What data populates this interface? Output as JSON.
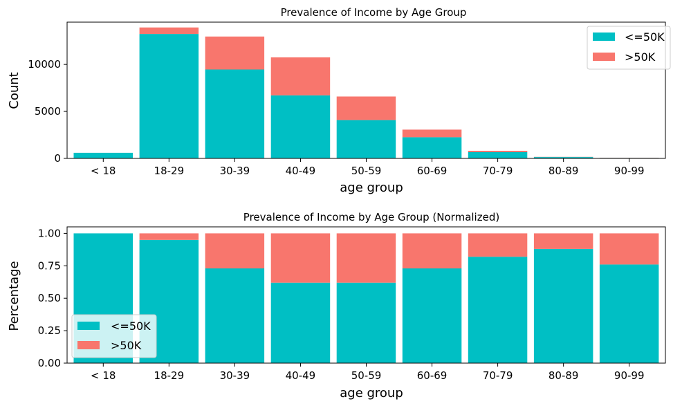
{
  "colors": {
    "le50k": "#00BFC4",
    "gt50k": "#F8766D"
  },
  "chart_data": [
    {
      "type": "bar",
      "stacked": true,
      "title": "Prevalence of Income by Age Group",
      "xlabel": "age group",
      "ylabel": "Count",
      "categories": [
        "< 18",
        "18-29",
        "30-39",
        "40-49",
        "50-59",
        "60-69",
        "70-79",
        "80-89",
        "90-99"
      ],
      "series": [
        {
          "name": "<=50K",
          "values": [
            595,
            13240,
            9460,
            6700,
            4080,
            2250,
            660,
            140,
            55
          ]
        },
        {
          "name": ">50K",
          "values": [
            0,
            690,
            3510,
            4050,
            2510,
            810,
            150,
            20,
            15
          ]
        }
      ],
      "ylim": [
        0,
        14500
      ],
      "yticks": [
        0,
        5000,
        10000
      ],
      "legend": "top-right"
    },
    {
      "type": "bar",
      "stacked": true,
      "title": "Prevalence of Income by Age Group (Normalized)",
      "xlabel": "age group",
      "ylabel": "Percentage",
      "categories": [
        "< 18",
        "18-29",
        "30-39",
        "40-49",
        "50-59",
        "60-69",
        "70-79",
        "80-89",
        "90-99"
      ],
      "series": [
        {
          "name": "<=50K",
          "values": [
            1.0,
            0.95,
            0.73,
            0.62,
            0.62,
            0.73,
            0.82,
            0.88,
            0.76
          ]
        },
        {
          "name": ">50K",
          "values": [
            0.0,
            0.05,
            0.27,
            0.38,
            0.38,
            0.27,
            0.18,
            0.12,
            0.24
          ]
        }
      ],
      "ylim": [
        0,
        1.05
      ],
      "yticks": [
        0.0,
        0.25,
        0.5,
        0.75,
        1.0
      ],
      "ytick_labels": [
        "0.00",
        "0.25",
        "0.50",
        "0.75",
        "1.00"
      ],
      "legend": "lower-left"
    }
  ]
}
